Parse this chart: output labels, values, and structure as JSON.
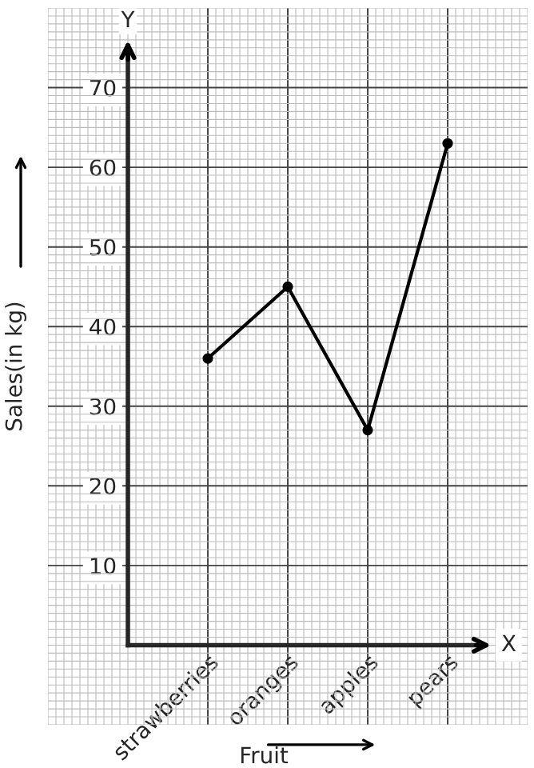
{
  "chart_data": {
    "type": "line",
    "xlabel": "Fruit",
    "ylabel": "Sales(in kg)",
    "annotations": [
      "X",
      "Y"
    ],
    "categories": [
      "strawberries",
      "oranges",
      "apples",
      "pears"
    ],
    "series": [
      {
        "color": "#000000",
        "values": [
          36,
          45,
          27,
          63
        ]
      }
    ],
    "ylim": [
      -10,
      80
    ],
    "yticks": [
      10,
      20,
      30,
      40,
      50,
      60,
      70
    ],
    "grid": true,
    "marker": "circle",
    "line_style": "solid",
    "legend": false
  }
}
